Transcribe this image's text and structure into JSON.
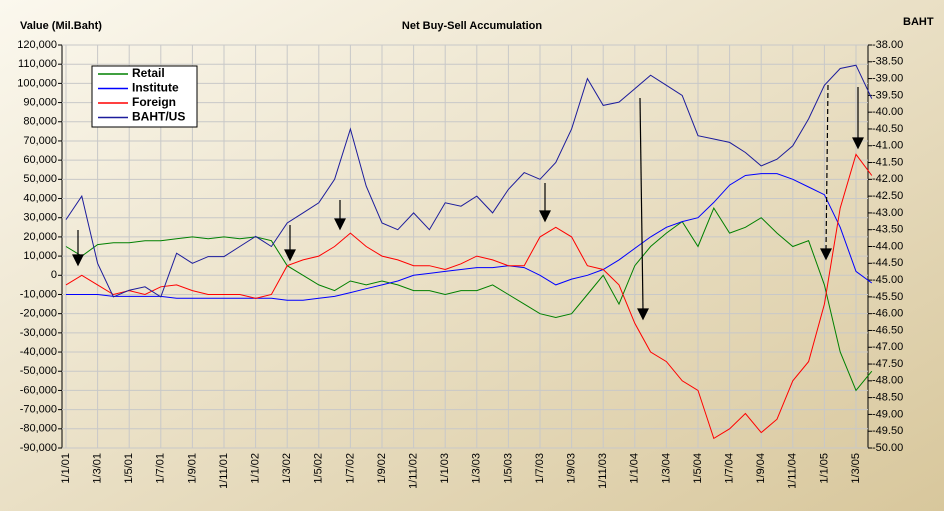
{
  "chart_data": {
    "type": "line",
    "title": "Net Buy-Sell Accumulation",
    "y_label": "Value (Mil.Baht)",
    "y2_label": "BAHT",
    "legend": "upper left",
    "grid": true,
    "categories": [
      "1/1/01",
      null,
      "1/3/01",
      null,
      "1/5/01",
      null,
      "1/7/01",
      null,
      "1/9/01",
      null,
      "1/11/01",
      null,
      "1/1/02",
      null,
      "1/3/02",
      null,
      "1/5/02",
      null,
      "1/7/02",
      null,
      "1/9/02",
      null,
      "1/11/02",
      null,
      "1/1/03",
      null,
      "1/3/03",
      null,
      "1/5/03",
      null,
      "1/7/03",
      null,
      "1/9/03",
      null,
      "1/11/03",
      null,
      "1/1/04",
      null,
      "1/3/04",
      null,
      "1/5/04",
      null,
      "1/7/04",
      null,
      "1/9/04",
      null,
      "1/11/04",
      null,
      "1/1/05",
      null,
      "1/3/05",
      null
    ],
    "ylim": [
      -90000,
      120000
    ],
    "yticks": [
      {
        "value": -90000,
        "label": "-90,000"
      },
      {
        "value": -80000,
        "label": "-80,000"
      },
      {
        "value": -70000,
        "label": "-70,000"
      },
      {
        "value": -60000,
        "label": "-60,000"
      },
      {
        "value": -50000,
        "label": "-50,000"
      },
      {
        "value": -40000,
        "label": "-40,000"
      },
      {
        "value": -30000,
        "label": "-30,000"
      },
      {
        "value": -20000,
        "label": "-20,000"
      },
      {
        "value": -10000,
        "label": "-10,000"
      },
      0,
      {
        "value": 10000,
        "label": "10,000"
      },
      {
        "value": 20000,
        "label": "20,000"
      },
      {
        "value": 30000,
        "label": "30,000"
      },
      {
        "value": 40000,
        "label": "40,000"
      },
      {
        "value": 50000,
        "label": "50,000"
      },
      {
        "value": 60000,
        "label": "60,000"
      },
      {
        "value": 70000,
        "label": "70,000"
      },
      {
        "value": 80000,
        "label": "80,000"
      },
      {
        "value": 90000,
        "label": "90,000"
      },
      {
        "value": 100000,
        "label": "100,000"
      },
      {
        "value": 110000,
        "label": "110,000"
      },
      {
        "value": 120000,
        "label": "120,000"
      }
    ],
    "y2lim": [
      -50,
      -38
    ],
    "y2ticks": [
      {
        "value": -50,
        "label": "-50.00"
      },
      {
        "value": -49.5,
        "label": "-49.50"
      },
      {
        "value": -49,
        "label": "-49.00"
      },
      {
        "value": -48.5,
        "label": "-48.50"
      },
      {
        "value": -48,
        "label": "-48.00"
      },
      {
        "value": -47.5,
        "label": "-47.50"
      },
      {
        "value": -47,
        "label": "-47.00"
      },
      {
        "value": -46.5,
        "label": "-46.50"
      },
      {
        "value": -46,
        "label": "-46.00"
      },
      {
        "value": -45.5,
        "label": "-45.50"
      },
      {
        "value": -45,
        "label": "-45.00"
      },
      {
        "value": -44.5,
        "label": "-44.50"
      },
      {
        "value": -44,
        "label": "-44.00"
      },
      {
        "value": -43.5,
        "label": "-43.50"
      },
      {
        "value": -43,
        "label": "-43.00"
      },
      {
        "value": -42.5,
        "label": "-42.50"
      },
      {
        "value": -42,
        "label": "-42.00"
      },
      {
        "value": -41.5,
        "label": "-41.50"
      },
      {
        "value": -41,
        "label": "-41.00"
      },
      {
        "value": -40.5,
        "label": "-40.50"
      },
      {
        "value": -40,
        "label": "-40.00"
      },
      {
        "value": -39.5,
        "label": "-39.50"
      },
      {
        "value": -39,
        "label": "-39.00"
      },
      {
        "value": -38.5,
        "label": "-38.50"
      },
      {
        "value": -38,
        "label": "-38.00"
      }
    ],
    "series": [
      {
        "name": "Retail",
        "color": "#008000",
        "values": [
          15000,
          10000,
          16000,
          17000,
          17000,
          18000,
          18000,
          19000,
          20000,
          19000,
          20000,
          19000,
          20000,
          18000,
          5000,
          0,
          -5000,
          -8000,
          -3000,
          -5000,
          -3000,
          -5000,
          -8000,
          -8000,
          -10000,
          -8000,
          -8000,
          -5000,
          -10000,
          -15000,
          -20000,
          -22000,
          -20000,
          -10000,
          0,
          -15000,
          5000,
          15000,
          22000,
          28000,
          15000,
          35000,
          22000,
          25000,
          30000,
          22000,
          15000,
          18000,
          -5000,
          -40000,
          -60000,
          -50000
        ]
      },
      {
        "name": "Institute",
        "color": "#0000ff",
        "values": [
          -10000,
          -10000,
          -10000,
          -11000,
          -11000,
          -11000,
          -11000,
          -12000,
          -12000,
          -12000,
          -12000,
          -12000,
          -12000,
          -12000,
          -13000,
          -13000,
          -12000,
          -11000,
          -9000,
          -7000,
          -5000,
          -3000,
          0,
          1000,
          2000,
          3000,
          4000,
          4000,
          5000,
          4000,
          0,
          -5000,
          -2000,
          0,
          3000,
          8000,
          14000,
          20000,
          25000,
          28000,
          30000,
          38000,
          47000,
          52000,
          53000,
          53000,
          50000,
          46000,
          42000,
          25000,
          2000,
          -4000
        ]
      },
      {
        "name": "Foreign",
        "color": "#ff0000",
        "values": [
          -5000,
          0,
          -5000,
          -10000,
          -8000,
          -10000,
          -6000,
          -5000,
          -8000,
          -10000,
          -10000,
          -10000,
          -12000,
          -10000,
          5000,
          8000,
          10000,
          15000,
          22000,
          15000,
          10000,
          8000,
          5000,
          5000,
          3000,
          6000,
          10000,
          8000,
          5000,
          5000,
          20000,
          25000,
          20000,
          5000,
          3000,
          -5000,
          -25000,
          -40000,
          -45000,
          -55000,
          -60000,
          -85000,
          -80000,
          -72000,
          -82000,
          -75000,
          -55000,
          -45000,
          -15000,
          35000,
          63000,
          52000
        ]
      },
      {
        "name": "BAHT/US",
        "color": "#1c1c9c",
        "axis": "y2",
        "values": [
          -43.2,
          -42.5,
          -44.5,
          -45.5,
          -45.3,
          -45.2,
          -45.5,
          -44.2,
          -44.5,
          -44.3,
          -44.3,
          -44.0,
          -43.7,
          -44.0,
          -43.3,
          -43.0,
          -42.7,
          -42.0,
          -40.5,
          -42.2,
          -43.3,
          -43.5,
          -43.0,
          -43.5,
          -42.7,
          -42.8,
          -42.5,
          -43.0,
          -42.3,
          -41.8,
          -42.0,
          -41.5,
          -40.5,
          -39.0,
          -39.8,
          -39.7,
          -39.3,
          -38.9,
          -39.2,
          -39.5,
          -40.7,
          -40.8,
          -40.9,
          -41.2,
          -41.6,
          -41.4,
          -41.0,
          -40.2,
          -39.2,
          -38.7,
          -38.6,
          -39.6
        ]
      }
    ]
  }
}
